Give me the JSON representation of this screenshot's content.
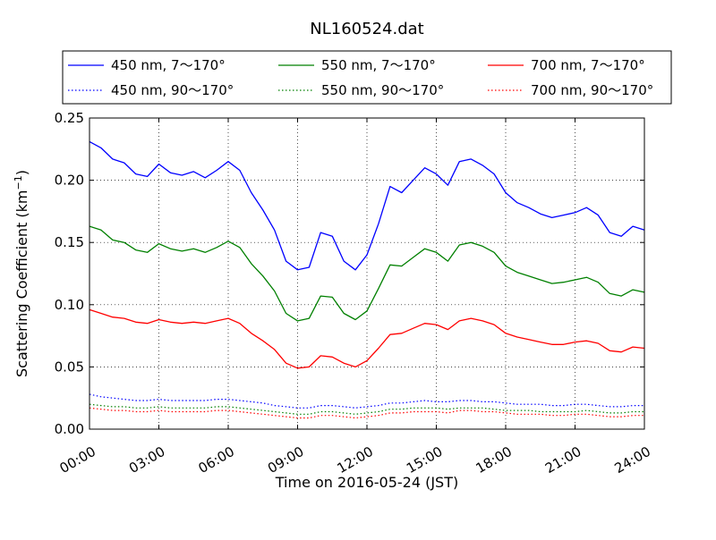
{
  "chart_data": {
    "type": "line",
    "title": "NL160524.dat",
    "xlabel": "Time on 2016-05-24 (JST)",
    "ylabel": "Scattering Coefficient (km",
    "ylabel_sup": "−1",
    "ylabel_close": ")",
    "xlim": [
      0,
      24
    ],
    "ylim": [
      0,
      0.25
    ],
    "grid": true,
    "legend_position": "top",
    "x_ticks": [
      0,
      3,
      6,
      9,
      12,
      15,
      18,
      21,
      24
    ],
    "x_tick_labels": [
      "00:00",
      "03:00",
      "06:00",
      "09:00",
      "12:00",
      "15:00",
      "18:00",
      "21:00",
      "24:00"
    ],
    "y_ticks": [
      0,
      0.05,
      0.1,
      0.15,
      0.2,
      0.25
    ],
    "y_tick_labels": [
      "0.00",
      "0.05",
      "0.10",
      "0.15",
      "0.20",
      "0.25"
    ],
    "x": [
      0,
      0.5,
      1,
      1.5,
      2,
      2.5,
      3,
      3.5,
      4,
      4.5,
      5,
      5.5,
      6,
      6.5,
      7,
      7.5,
      8,
      8.5,
      9,
      9.5,
      10,
      10.5,
      11,
      11.5,
      12,
      12.5,
      13,
      13.5,
      14,
      14.5,
      15,
      15.5,
      16,
      16.5,
      17,
      17.5,
      18,
      18.5,
      19,
      19.5,
      20,
      20.5,
      21,
      21.5,
      22,
      22.5,
      23,
      23.5,
      24
    ],
    "series": [
      {
        "name": "450 nm, 7～170°",
        "color": "#0000ff",
        "style": "solid",
        "values": [
          0.231,
          0.226,
          0.217,
          0.214,
          0.205,
          0.203,
          0.213,
          0.206,
          0.204,
          0.207,
          0.202,
          0.208,
          0.215,
          0.208,
          0.19,
          0.176,
          0.16,
          0.135,
          0.128,
          0.13,
          0.158,
          0.155,
          0.135,
          0.128,
          0.14,
          0.165,
          0.195,
          0.19,
          0.2,
          0.21,
          0.205,
          0.196,
          0.215,
          0.217,
          0.212,
          0.205,
          0.19,
          0.182,
          0.178,
          0.173,
          0.17,
          0.172,
          0.174,
          0.178,
          0.172,
          0.158,
          0.155,
          0.163,
          0.16
        ]
      },
      {
        "name": "550 nm, 7～170°",
        "color": "#008000",
        "style": "solid",
        "values": [
          0.163,
          0.16,
          0.152,
          0.15,
          0.144,
          0.142,
          0.149,
          0.145,
          0.143,
          0.145,
          0.142,
          0.146,
          0.151,
          0.146,
          0.133,
          0.123,
          0.111,
          0.093,
          0.087,
          0.089,
          0.107,
          0.106,
          0.093,
          0.088,
          0.095,
          0.113,
          0.132,
          0.131,
          0.138,
          0.145,
          0.142,
          0.135,
          0.148,
          0.15,
          0.147,
          0.142,
          0.131,
          0.126,
          0.123,
          0.12,
          0.117,
          0.118,
          0.12,
          0.122,
          0.118,
          0.109,
          0.107,
          0.112,
          0.11
        ]
      },
      {
        "name": "700 nm, 7～170°",
        "color": "#ff0000",
        "style": "solid",
        "values": [
          0.096,
          0.093,
          0.09,
          0.089,
          0.086,
          0.085,
          0.088,
          0.086,
          0.085,
          0.086,
          0.085,
          0.087,
          0.089,
          0.085,
          0.077,
          0.071,
          0.064,
          0.053,
          0.049,
          0.05,
          0.059,
          0.058,
          0.053,
          0.05,
          0.055,
          0.065,
          0.076,
          0.077,
          0.081,
          0.085,
          0.084,
          0.08,
          0.087,
          0.089,
          0.087,
          0.084,
          0.077,
          0.074,
          0.072,
          0.07,
          0.068,
          0.068,
          0.07,
          0.071,
          0.069,
          0.063,
          0.062,
          0.066,
          0.065
        ]
      },
      {
        "name": "450 nm, 90～170°",
        "color": "#0000ff",
        "style": "dotted",
        "values": [
          0.028,
          0.026,
          0.025,
          0.024,
          0.023,
          0.023,
          0.024,
          0.023,
          0.023,
          0.023,
          0.023,
          0.024,
          0.024,
          0.023,
          0.022,
          0.021,
          0.019,
          0.018,
          0.017,
          0.017,
          0.019,
          0.019,
          0.018,
          0.017,
          0.018,
          0.019,
          0.021,
          0.021,
          0.022,
          0.023,
          0.022,
          0.022,
          0.023,
          0.023,
          0.022,
          0.022,
          0.021,
          0.02,
          0.02,
          0.02,
          0.019,
          0.019,
          0.02,
          0.02,
          0.019,
          0.018,
          0.018,
          0.019,
          0.019
        ]
      },
      {
        "name": "550 nm, 90～170°",
        "color": "#008000",
        "style": "dotted",
        "values": [
          0.02,
          0.019,
          0.018,
          0.018,
          0.017,
          0.017,
          0.018,
          0.017,
          0.017,
          0.017,
          0.017,
          0.018,
          0.018,
          0.017,
          0.016,
          0.015,
          0.014,
          0.013,
          0.012,
          0.012,
          0.014,
          0.014,
          0.013,
          0.012,
          0.013,
          0.014,
          0.016,
          0.016,
          0.017,
          0.017,
          0.017,
          0.016,
          0.017,
          0.017,
          0.017,
          0.016,
          0.015,
          0.015,
          0.015,
          0.014,
          0.014,
          0.014,
          0.014,
          0.015,
          0.014,
          0.013,
          0.013,
          0.014,
          0.014
        ]
      },
      {
        "name": "700 nm, 90～170°",
        "color": "#ff0000",
        "style": "dotted",
        "values": [
          0.017,
          0.016,
          0.015,
          0.015,
          0.014,
          0.014,
          0.015,
          0.014,
          0.014,
          0.014,
          0.014,
          0.015,
          0.015,
          0.014,
          0.013,
          0.012,
          0.011,
          0.01,
          0.009,
          0.009,
          0.011,
          0.011,
          0.01,
          0.009,
          0.01,
          0.011,
          0.013,
          0.013,
          0.014,
          0.014,
          0.014,
          0.013,
          0.015,
          0.015,
          0.014,
          0.014,
          0.013,
          0.012,
          0.012,
          0.012,
          0.011,
          0.011,
          0.012,
          0.012,
          0.011,
          0.01,
          0.01,
          0.011,
          0.011
        ]
      }
    ]
  }
}
